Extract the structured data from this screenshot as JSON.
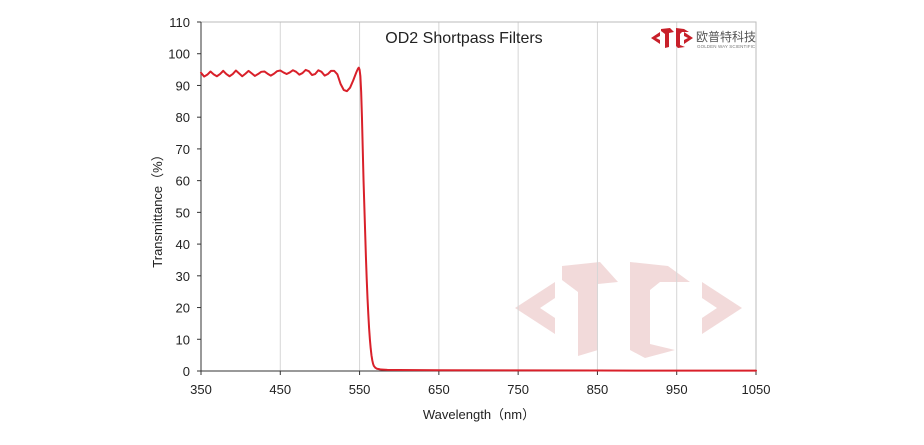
{
  "chart_data": {
    "type": "line",
    "title": "OD2  Shortpass Filters",
    "xlabel": "Wavelength（nm）",
    "ylabel": "Transmittance（%）",
    "xlim": [
      350,
      1050
    ],
    "ylim": [
      0,
      110
    ],
    "x_ticks": [
      "350",
      "450",
      "550",
      "650",
      "750",
      "850",
      "950",
      "1050"
    ],
    "y_ticks": [
      "0",
      "10",
      "20",
      "30",
      "40",
      "50",
      "60",
      "70",
      "80",
      "90",
      "100",
      "110"
    ],
    "grid": "vertical",
    "series": [
      {
        "color": "#d9202a",
        "points": [
          [
            350,
            94
          ],
          [
            354,
            92.8
          ],
          [
            358,
            93.4
          ],
          [
            362,
            94.4
          ],
          [
            366,
            93.5
          ],
          [
            370,
            92.9
          ],
          [
            374,
            93.6
          ],
          [
            378,
            94.6
          ],
          [
            382,
            93.6
          ],
          [
            386,
            92.9
          ],
          [
            390,
            93.6
          ],
          [
            394,
            94.7
          ],
          [
            398,
            93.8
          ],
          [
            402,
            92.9
          ],
          [
            406,
            93.7
          ],
          [
            410,
            94.6
          ],
          [
            414,
            93.8
          ],
          [
            418,
            93.0
          ],
          [
            422,
            93.6
          ],
          [
            426,
            94.3
          ],
          [
            430,
            94.4
          ],
          [
            434,
            93.7
          ],
          [
            438,
            93.1
          ],
          [
            442,
            93.7
          ],
          [
            446,
            94.5
          ],
          [
            450,
            94.7
          ],
          [
            454,
            94.1
          ],
          [
            458,
            93.6
          ],
          [
            462,
            94.1
          ],
          [
            466,
            94.8
          ],
          [
            470,
            94.3
          ],
          [
            474,
            93.4
          ],
          [
            478,
            93.9
          ],
          [
            482,
            94.9
          ],
          [
            486,
            94.5
          ],
          [
            490,
            93.3
          ],
          [
            494,
            93.6
          ],
          [
            498,
            94.8
          ],
          [
            502,
            94.3
          ],
          [
            506,
            93.1
          ],
          [
            510,
            93.6
          ],
          [
            514,
            94.6
          ],
          [
            518,
            94.6
          ],
          [
            522,
            93.5
          ],
          [
            526,
            90.5
          ],
          [
            530,
            88.6
          ],
          [
            534,
            88.2
          ],
          [
            538,
            89.3
          ],
          [
            542,
            91.6
          ],
          [
            546,
            94.2
          ],
          [
            548,
            95.3
          ],
          [
            549,
            95.6
          ],
          [
            550,
            95.0
          ],
          [
            551,
            93.0
          ],
          [
            552,
            88.0
          ],
          [
            553,
            80.0
          ],
          [
            554,
            70.0
          ],
          [
            555,
            60.0
          ],
          [
            556,
            52.0
          ],
          [
            557,
            44.0
          ],
          [
            558,
            36.0
          ],
          [
            559,
            29.0
          ],
          [
            560,
            23.0
          ],
          [
            561,
            18.0
          ],
          [
            562,
            13.5
          ],
          [
            563,
            10.0
          ],
          [
            564,
            7.2
          ],
          [
            565,
            5.0
          ],
          [
            566,
            3.4
          ],
          [
            567,
            2.3
          ],
          [
            568,
            1.6
          ],
          [
            570,
            1.0
          ],
          [
            572,
            0.7
          ],
          [
            576,
            0.5
          ],
          [
            585,
            0.35
          ],
          [
            600,
            0.3
          ],
          [
            650,
            0.25
          ],
          [
            750,
            0.2
          ],
          [
            850,
            0.15
          ],
          [
            950,
            0.12
          ],
          [
            1050,
            0.1
          ]
        ]
      }
    ]
  },
  "logo": {
    "name_cn": "欧普特科技",
    "name_en": "GOLDEN WAY SCIENTIFIC",
    "color": "#c8202a",
    "watermark_color": "#f2dada"
  },
  "colors": {
    "axis": "#333333",
    "grid": "#d6d6d6",
    "line": "#d9202a"
  }
}
